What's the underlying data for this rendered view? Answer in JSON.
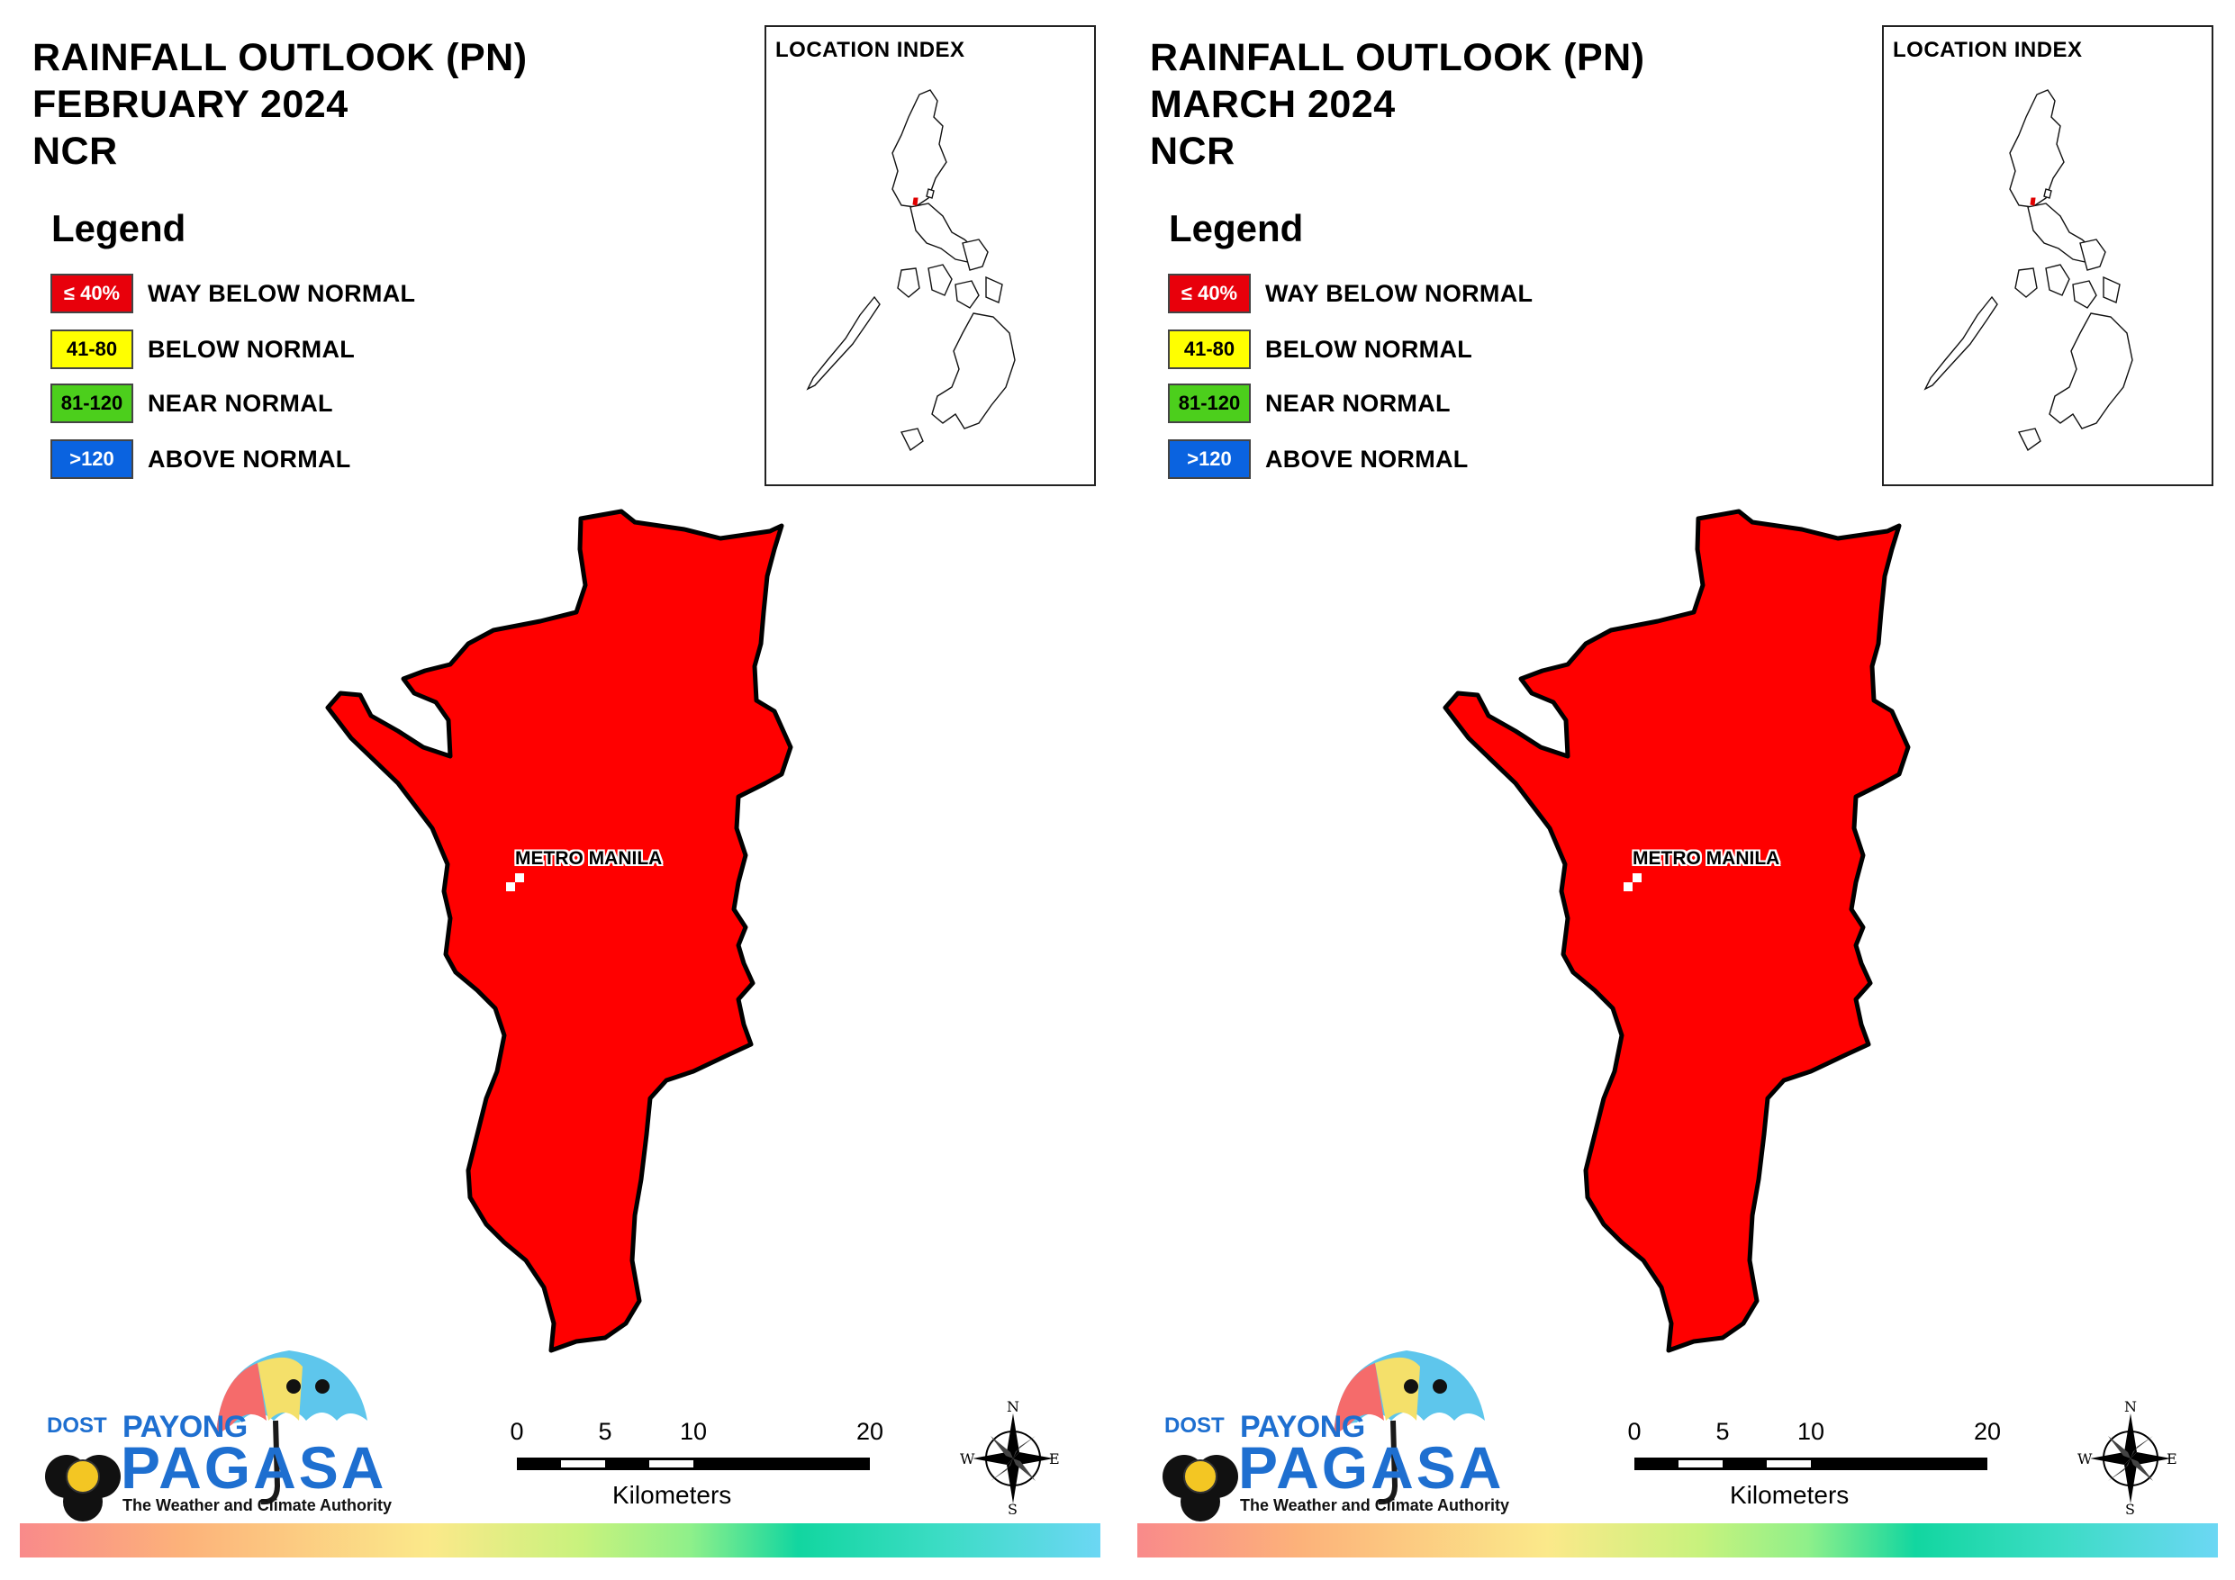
{
  "panels": [
    {
      "title_line1": "RAINFALL OUTLOOK (PN)",
      "title_line2": "FEBRUARY 2024",
      "title_line3": "NCR",
      "legend_heading": "Legend",
      "legend": [
        {
          "swatch": "≤ 40%",
          "label": "WAY BELOW NORMAL",
          "color": "#e8000b",
          "text_color": "#ffffff"
        },
        {
          "swatch": "41-80",
          "label": "BELOW NORMAL",
          "color": "#ffff00",
          "text_color": "#000000"
        },
        {
          "swatch": "81-120",
          "label": "NEAR NORMAL",
          "color": "#4ccf1c",
          "text_color": "#000000"
        },
        {
          "swatch": ">120",
          "label": "ABOVE NORMAL",
          "color": "#0a63e0",
          "text_color": "#ffffff"
        }
      ],
      "inset_title": "LOCATION INDEX",
      "region_label": "METRO MANILA",
      "region_category": "≤ 40%",
      "region_color": "#ff0000",
      "scale": {
        "ticks": [
          "0",
          "5",
          "10",
          "20"
        ],
        "units": "Kilometers"
      },
      "compass": {
        "n": "N",
        "e": "E",
        "s": "S",
        "w": "W"
      },
      "logo": {
        "dost": "DOST",
        "payong": "PAYONG",
        "pagasa": "PAGASA",
        "tagline": "The Weather and Climate Authority"
      }
    },
    {
      "title_line1": "RAINFALL OUTLOOK (PN)",
      "title_line2": "MARCH 2024",
      "title_line3": "NCR",
      "legend_heading": "Legend",
      "legend": [
        {
          "swatch": "≤ 40%",
          "label": "WAY BELOW NORMAL",
          "color": "#e8000b",
          "text_color": "#ffffff"
        },
        {
          "swatch": "41-80",
          "label": "BELOW NORMAL",
          "color": "#ffff00",
          "text_color": "#000000"
        },
        {
          "swatch": "81-120",
          "label": "NEAR NORMAL",
          "color": "#4ccf1c",
          "text_color": "#000000"
        },
        {
          "swatch": ">120",
          "label": "ABOVE NORMAL",
          "color": "#0a63e0",
          "text_color": "#ffffff"
        }
      ],
      "inset_title": "LOCATION INDEX",
      "region_label": "METRO MANILA",
      "region_category": "≤ 40%",
      "region_color": "#ff0000",
      "scale": {
        "ticks": [
          "0",
          "5",
          "10",
          "20"
        ],
        "units": "Kilometers"
      },
      "compass": {
        "n": "N",
        "e": "E",
        "s": "S",
        "w": "W"
      },
      "logo": {
        "dost": "DOST",
        "payong": "PAYONG",
        "pagasa": "PAGASA",
        "tagline": "The Weather and Climate Authority"
      }
    }
  ]
}
